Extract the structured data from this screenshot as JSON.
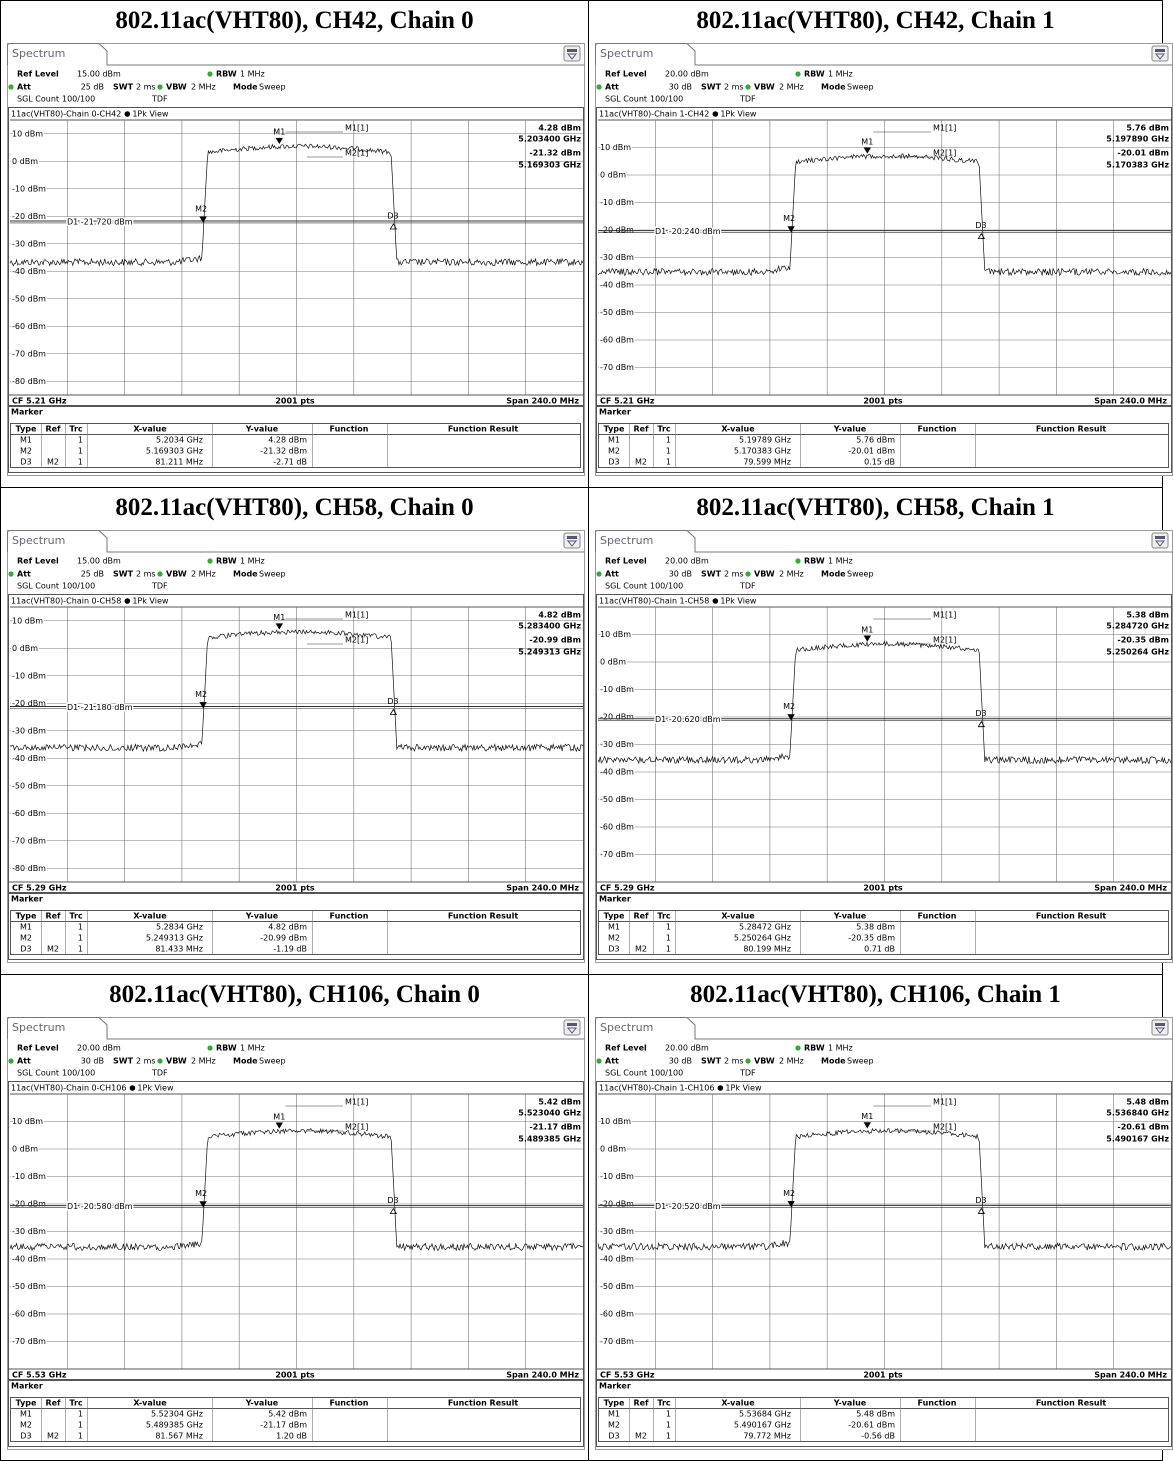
{
  "common": {
    "tab": "Spectrum",
    "ref_level_label": "Ref Level",
    "att_label": "Att",
    "swt_label": "SWT",
    "swt": "2 ms",
    "rbw_label": "RBW",
    "rbw": "1 MHz",
    "vbw_label": "VBW",
    "vbw": "2 MHz",
    "mode_label": "Mode",
    "mode": "Sweep",
    "count_label": "SGL Count",
    "count": "100/100",
    "tdf": "TDF",
    "view": "1Pk View",
    "pts": "2001 pts",
    "span": "Span 240.0 MHz",
    "marker_info_names": [
      "M1[1]",
      "M2[1]"
    ],
    "marker_title": "Marker",
    "header": [
      "Type",
      "Ref",
      "Trc",
      "X-value",
      "Y-value",
      "Function",
      "Function Result"
    ]
  },
  "panels": [
    {
      "title": "802.11ac(VHT80), CH42, Chain 0",
      "ref_level": "15.00 dBm",
      "att": "25 dB",
      "trace_label": "11ac(VHT80)-Chain 0-CH42",
      "ylim": [
        -85,
        15
      ],
      "yticks": [
        {
          "value": 10,
          "label": "10 dBm"
        },
        {
          "value": 0,
          "label": "0 dBm"
        },
        {
          "value": -10,
          "label": "-10 dBm"
        },
        {
          "value": -20,
          "label": "-20 dBm"
        },
        {
          "value": -30,
          "label": "-30 dBm"
        },
        {
          "value": -40,
          "label": "-40 dBm"
        },
        {
          "value": -50,
          "label": "-50 dBm"
        },
        {
          "value": -60,
          "label": "-60 dBm"
        },
        {
          "value": -70,
          "label": "-70 dBm"
        },
        {
          "value": -80,
          "label": "-80 dBm"
        }
      ],
      "d1": {
        "value": -21.72,
        "label": "D1 -21.720 dBm"
      },
      "marker_info": [
        [
          "4.28 dBm",
          "5.203400 GHz"
        ],
        [
          "-21.32 dBm",
          "5.169303 GHz"
        ]
      ],
      "cf": "CF 5.21 GHz",
      "rows": [
        {
          "type": "M1",
          "trc": "1",
          "x": "5.2034 GHz",
          "y": "4.28 dBm"
        },
        {
          "type": "M2",
          "trc": "1",
          "x": "5.169303 GHz",
          "y": "-21.32 dBm"
        },
        {
          "type": "D3",
          "ref": "M2",
          "trc": "1",
          "x": "81.211 MHz",
          "y": "-2.71 dB"
        }
      ]
    },
    {
      "title": "802.11ac(VHT80), CH42, Chain 1",
      "ref_level": "20.00 dBm",
      "att": "30 dB",
      "trace_label": "11ac(VHT80)-Chain 1-CH42",
      "ylim": [
        -80,
        20
      ],
      "yticks": [
        {
          "value": 10,
          "label": "10 dBm"
        },
        {
          "value": 0,
          "label": "0 dBm"
        },
        {
          "value": -10,
          "label": "-10 dBm"
        },
        {
          "value": -20,
          "label": "-20 dBm"
        },
        {
          "value": -30,
          "label": "-30 dBm"
        },
        {
          "value": -40,
          "label": "-40 dBm"
        },
        {
          "value": -50,
          "label": "-50 dBm"
        },
        {
          "value": -60,
          "label": "-60 dBm"
        },
        {
          "value": -70,
          "label": "-70 dBm"
        }
      ],
      "d1": {
        "value": -20.24,
        "label": "D1 -20.240 dBm"
      },
      "marker_info": [
        [
          "5.76 dBm",
          "5.197890 GHz"
        ],
        [
          "-20.01 dBm",
          "5.170383 GHz"
        ]
      ],
      "cf": "CF 5.21 GHz",
      "rows": [
        {
          "type": "M1",
          "trc": "1",
          "x": "5.19789 GHz",
          "y": "5.76 dBm"
        },
        {
          "type": "M2",
          "trc": "1",
          "x": "5.170383 GHz",
          "y": "-20.01 dBm"
        },
        {
          "type": "D3",
          "ref": "M2",
          "trc": "1",
          "x": "79.599 MHz",
          "y": "0.15 dB"
        }
      ]
    },
    {
      "title": "802.11ac(VHT80), CH58, Chain 0",
      "ref_level": "15.00 dBm",
      "att": "25 dB",
      "trace_label": "11ac(VHT80)-Chain 0-CH58",
      "ylim": [
        -85,
        15
      ],
      "yticks": [
        {
          "value": 10,
          "label": "10 dBm"
        },
        {
          "value": 0,
          "label": "0 dBm"
        },
        {
          "value": -10,
          "label": "-10 dBm"
        },
        {
          "value": -20,
          "label": "-20 dBm"
        },
        {
          "value": -30,
          "label": "-30 dBm"
        },
        {
          "value": -40,
          "label": "-40 dBm"
        },
        {
          "value": -50,
          "label": "-50 dBm"
        },
        {
          "value": -60,
          "label": "-60 dBm"
        },
        {
          "value": -70,
          "label": "-70 dBm"
        },
        {
          "value": -80,
          "label": "-80 dBm"
        }
      ],
      "d1": {
        "value": -21.18,
        "label": "D1 -21.180 dBm"
      },
      "marker_info": [
        [
          "4.82 dBm",
          "5.283400 GHz"
        ],
        [
          "-20.99 dBm",
          "5.249313 GHz"
        ]
      ],
      "cf": "CF 5.29 GHz",
      "rows": [
        {
          "type": "M1",
          "trc": "1",
          "x": "5.2834 GHz",
          "y": "4.82 dBm"
        },
        {
          "type": "M2",
          "trc": "1",
          "x": "5.249313 GHz",
          "y": "-20.99 dBm"
        },
        {
          "type": "D3",
          "ref": "M2",
          "trc": "1",
          "x": "81.433 MHz",
          "y": "-1.19 dB"
        }
      ]
    },
    {
      "title": "802.11ac(VHT80), CH58, Chain 1",
      "ref_level": "20.00 dBm",
      "att": "30 dB",
      "trace_label": "11ac(VHT80)-Chain 1-CH58",
      "ylim": [
        -80,
        20
      ],
      "yticks": [
        {
          "value": 10,
          "label": "10 dBm"
        },
        {
          "value": 0,
          "label": "0 dBm"
        },
        {
          "value": -10,
          "label": "-10 dBm"
        },
        {
          "value": -20,
          "label": "-20 dBm"
        },
        {
          "value": -30,
          "label": "-30 dBm"
        },
        {
          "value": -40,
          "label": "-40 dBm"
        },
        {
          "value": -50,
          "label": "-50 dBm"
        },
        {
          "value": -60,
          "label": "-60 dBm"
        },
        {
          "value": -70,
          "label": "-70 dBm"
        }
      ],
      "d1": {
        "value": -20.62,
        "label": "D1 -20.620 dBm"
      },
      "marker_info": [
        [
          "5.38 dBm",
          "5.284720 GHz"
        ],
        [
          "-20.35 dBm",
          "5.250264 GHz"
        ]
      ],
      "cf": "CF 5.29 GHz",
      "rows": [
        {
          "type": "M1",
          "trc": "1",
          "x": "5.28472 GHz",
          "y": "5.38 dBm"
        },
        {
          "type": "M2",
          "trc": "1",
          "x": "5.250264 GHz",
          "y": "-20.35 dBm"
        },
        {
          "type": "D3",
          "ref": "M2",
          "trc": "1",
          "x": "80.199 MHz",
          "y": "0.71 dB"
        }
      ]
    },
    {
      "title": "802.11ac(VHT80), CH106, Chain 0",
      "ref_level": "20.00 dBm",
      "att": "30 dB",
      "trace_label": "11ac(VHT80)-Chain 0-CH106",
      "ylim": [
        -80,
        20
      ],
      "yticks": [
        {
          "value": 10,
          "label": "10 dBm"
        },
        {
          "value": 0,
          "label": "0 dBm"
        },
        {
          "value": -10,
          "label": "-10 dBm"
        },
        {
          "value": -20,
          "label": "-20 dBm"
        },
        {
          "value": -30,
          "label": "-30 dBm"
        },
        {
          "value": -40,
          "label": "-40 dBm"
        },
        {
          "value": -50,
          "label": "-50 dBm"
        },
        {
          "value": -60,
          "label": "-60 dBm"
        },
        {
          "value": -70,
          "label": "-70 dBm"
        }
      ],
      "d1": {
        "value": -20.58,
        "label": "D1 -20.580 dBm"
      },
      "marker_info": [
        [
          "5.42 dBm",
          "5.523040 GHz"
        ],
        [
          "-21.17 dBm",
          "5.489385 GHz"
        ]
      ],
      "cf": "CF 5.53 GHz",
      "rows": [
        {
          "type": "M1",
          "trc": "1",
          "x": "5.52304 GHz",
          "y": "5.42 dBm"
        },
        {
          "type": "M2",
          "trc": "1",
          "x": "5.489385 GHz",
          "y": "-21.17 dBm"
        },
        {
          "type": "D3",
          "ref": "M2",
          "trc": "1",
          "x": "81.567 MHz",
          "y": "1.20 dB"
        }
      ]
    },
    {
      "title": "802.11ac(VHT80), CH106, Chain 1",
      "ref_level": "20.00 dBm",
      "att": "30 dB",
      "trace_label": "11ac(VHT80)-Chain 1-CH106",
      "ylim": [
        -80,
        20
      ],
      "yticks": [
        {
          "value": 10,
          "label": "10 dBm"
        },
        {
          "value": 0,
          "label": "0 dBm"
        },
        {
          "value": -10,
          "label": "-10 dBm"
        },
        {
          "value": -20,
          "label": "-20 dBm"
        },
        {
          "value": -30,
          "label": "-30 dBm"
        },
        {
          "value": -40,
          "label": "-40 dBm"
        },
        {
          "value": -50,
          "label": "-50 dBm"
        },
        {
          "value": -60,
          "label": "-60 dBm"
        },
        {
          "value": -70,
          "label": "-70 dBm"
        }
      ],
      "d1": {
        "value": -20.52,
        "label": "D1 -20.520 dBm"
      },
      "marker_info": [
        [
          "5.48 dBm",
          "5.536840 GHz"
        ],
        [
          "-20.61 dBm",
          "5.490167 GHz"
        ]
      ],
      "cf": "CF 5.53 GHz",
      "rows": [
        {
          "type": "M1",
          "trc": "1",
          "x": "5.53684 GHz",
          "y": "5.48 dBm"
        },
        {
          "type": "M2",
          "trc": "1",
          "x": "5.490167 GHz",
          "y": "-20.61 dBm"
        },
        {
          "type": "D3",
          "ref": "M2",
          "trc": "1",
          "x": "79.772 MHz",
          "y": "-0.56 dB"
        }
      ]
    }
  ]
}
